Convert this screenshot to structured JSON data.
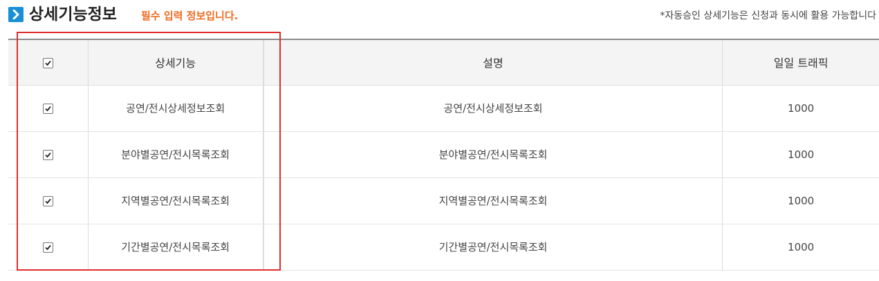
{
  "header": {
    "icon": "chevron-right-icon",
    "title": "상세기능정보",
    "required_note": "필수 입력 정보입니다.",
    "notice": "*자동승인 상세기능은 신청과 동시에 활용 가능합니다"
  },
  "table": {
    "columns": {
      "feature": "상세기능",
      "description": "설명",
      "traffic": "일일 트래픽"
    },
    "select_all_checked": true,
    "rows": [
      {
        "checked": true,
        "feature": "공연/전시상세정보조회",
        "description": "공연/전시상세정보조회",
        "traffic": "1000"
      },
      {
        "checked": true,
        "feature": "분야별공연/전시목록조회",
        "description": "분야별공연/전시목록조회",
        "traffic": "1000"
      },
      {
        "checked": true,
        "feature": "지역별공연/전시목록조회",
        "description": "지역별공연/전시목록조회",
        "traffic": "1000"
      },
      {
        "checked": true,
        "feature": "기간별공연/전시목록조회",
        "description": "기간별공연/전시목록조회",
        "traffic": "1000"
      }
    ]
  },
  "colors": {
    "accent_icon": "#1a8fd6",
    "required_text": "#ef6b21",
    "highlight_box": "#e02b2b"
  }
}
